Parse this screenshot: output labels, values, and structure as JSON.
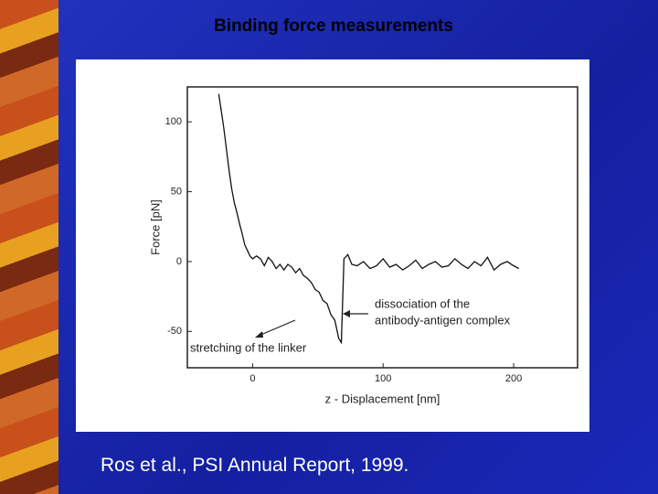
{
  "slide": {
    "title": "Binding force measurements",
    "caption": "Ros et al., PSI Annual Report, 1999."
  },
  "chart_data": {
    "type": "line",
    "x_label": "z - Displacement [nm]",
    "y_label": "Force [pN]",
    "xlim": [
      -50,
      249
    ],
    "ylim": [
      -76,
      125
    ],
    "xticks": [
      0,
      100,
      200
    ],
    "yticks": [
      -50,
      0,
      50,
      100
    ],
    "annotations": [
      [
        "dissociation of the",
        "antibody-antigen complex"
      ],
      [
        "stretching of the linker"
      ]
    ],
    "series": [
      {
        "color": "#111111",
        "x": [
          -26,
          -24,
          -22,
          -20,
          -18,
          -16,
          -14,
          -12,
          -10,
          -8,
          -6,
          -4,
          -2,
          0,
          3,
          6,
          9,
          12,
          15,
          18,
          21,
          24,
          27,
          30,
          33,
          36,
          39,
          42,
          45,
          48,
          51,
          54,
          57,
          60,
          63,
          66,
          68,
          70,
          73,
          76,
          80,
          85,
          90,
          95,
          100,
          105,
          110,
          115,
          120,
          125,
          130,
          135,
          140,
          145,
          150,
          155,
          160,
          165,
          170,
          175,
          180,
          185,
          190,
          195,
          200,
          204
        ],
        "values": [
          120,
          108,
          95,
          80,
          65,
          52,
          42,
          35,
          27,
          20,
          12,
          8,
          4,
          2,
          4,
          2,
          -3,
          3,
          0,
          -5,
          -2,
          -6,
          -2,
          -4,
          -8,
          -5,
          -10,
          -12,
          -15,
          -20,
          -22,
          -28,
          -30,
          -38,
          -42,
          -55,
          -58,
          2,
          5,
          -2,
          -3,
          0,
          -5,
          -3,
          2,
          -4,
          -2,
          -6,
          -3,
          1,
          -5,
          -2,
          0,
          -4,
          -3,
          2,
          -2,
          -5,
          0,
          -3,
          3,
          -6,
          -2,
          0,
          -3,
          -5
        ]
      }
    ]
  }
}
